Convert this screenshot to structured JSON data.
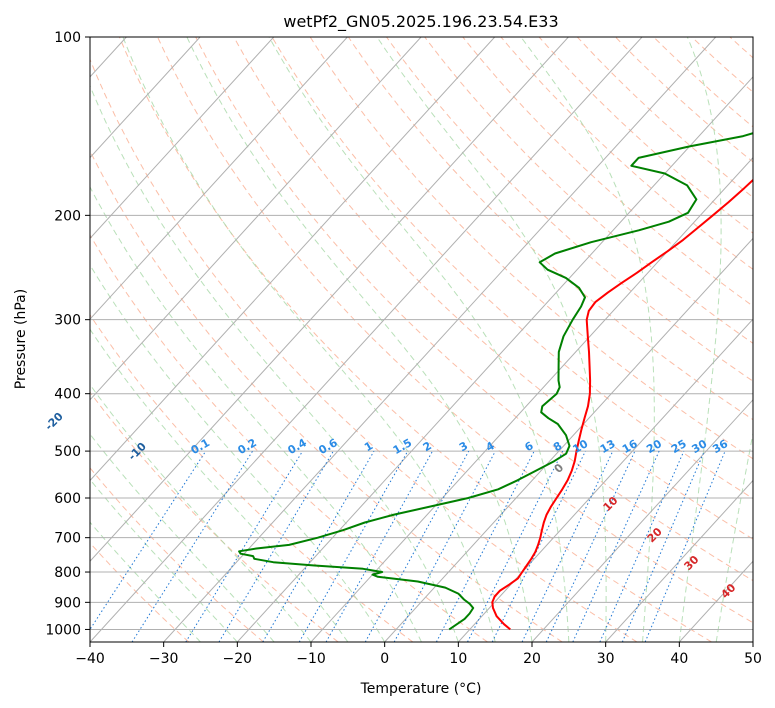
{
  "chart_data": {
    "type": "line",
    "title": "wetPf2_GN05.2025.196.23.54.E33",
    "xlabel": "Temperature (°C)",
    "ylabel": "Pressure (hPa)",
    "xlim": [
      -40,
      50
    ],
    "ylim": [
      1050,
      100
    ],
    "y_scale": "log",
    "x_ticks": [
      -40,
      -30,
      -20,
      -10,
      0,
      10,
      20,
      30,
      40,
      50
    ],
    "y_ticks": [
      100,
      200,
      300,
      400,
      500,
      600,
      700,
      800,
      900,
      1000
    ],
    "grid": true,
    "series": [
      {
        "color": "#ff0000",
        "values": [
          {
            "p": 1000,
            "t": 15.5
          },
          {
            "p": 980,
            "t": 14.0
          },
          {
            "p": 950,
            "t": 12.0
          },
          {
            "p": 920,
            "t": 10.5
          },
          {
            "p": 900,
            "t": 9.7
          },
          {
            "p": 880,
            "t": 9.3
          },
          {
            "p": 860,
            "t": 9.3
          },
          {
            "p": 840,
            "t": 9.8
          },
          {
            "p": 820,
            "t": 10.2
          },
          {
            "p": 800,
            "t": 10.0
          },
          {
            "p": 780,
            "t": 9.8
          },
          {
            "p": 760,
            "t": 9.6
          },
          {
            "p": 740,
            "t": 9.3
          },
          {
            "p": 720,
            "t": 8.8
          },
          {
            "p": 700,
            "t": 8.2
          },
          {
            "p": 680,
            "t": 7.5
          },
          {
            "p": 660,
            "t": 6.8
          },
          {
            "p": 640,
            "t": 6.2
          },
          {
            "p": 620,
            "t": 5.8
          },
          {
            "p": 600,
            "t": 5.5
          },
          {
            "p": 580,
            "t": 5.2
          },
          {
            "p": 560,
            "t": 4.8
          },
          {
            "p": 540,
            "t": 4.2
          },
          {
            "p": 520,
            "t": 3.4
          },
          {
            "p": 500,
            "t": 2.4
          },
          {
            "p": 480,
            "t": 1.4
          },
          {
            "p": 460,
            "t": 0.4
          },
          {
            "p": 440,
            "t": -0.6
          },
          {
            "p": 420,
            "t": -1.6
          },
          {
            "p": 400,
            "t": -2.9
          },
          {
            "p": 380,
            "t": -4.5
          },
          {
            "p": 360,
            "t": -6.3
          },
          {
            "p": 340,
            "t": -8.2
          },
          {
            "p": 320,
            "t": -10.3
          },
          {
            "p": 300,
            "t": -12.5
          },
          {
            "p": 290,
            "t": -13.3
          },
          {
            "p": 280,
            "t": -13.5
          },
          {
            "p": 270,
            "t": -13.0
          },
          {
            "p": 260,
            "t": -12.3
          },
          {
            "p": 250,
            "t": -11.5
          },
          {
            "p": 240,
            "t": -10.8
          },
          {
            "p": 230,
            "t": -10.0
          },
          {
            "p": 220,
            "t": -9.3
          },
          {
            "p": 210,
            "t": -8.8
          },
          {
            "p": 200,
            "t": -8.3
          },
          {
            "p": 190,
            "t": -7.8
          },
          {
            "p": 180,
            "t": -7.4
          },
          {
            "p": 170,
            "t": -7.1
          },
          {
            "p": 160,
            "t": -7.1
          },
          {
            "p": 150,
            "t": -7.5
          },
          {
            "p": 140,
            "t": -8.2
          },
          {
            "p": 130,
            "t": -9.2
          },
          {
            "p": 120,
            "t": -10.7
          },
          {
            "p": 110,
            "t": -12.3
          },
          {
            "p": 105,
            "t": -12.9
          },
          {
            "p": 100,
            "t": -13.2
          }
        ]
      },
      {
        "color": "#008000",
        "values": [
          {
            "p": 1000,
            "t": 7.2
          },
          {
            "p": 985,
            "t": 7.5
          },
          {
            "p": 960,
            "t": 8.0
          },
          {
            "p": 940,
            "t": 8.0
          },
          {
            "p": 920,
            "t": 7.8
          },
          {
            "p": 905,
            "t": 6.8
          },
          {
            "p": 890,
            "t": 5.5
          },
          {
            "p": 870,
            "t": 4.0
          },
          {
            "p": 850,
            "t": 1.5
          },
          {
            "p": 830,
            "t": -3.0
          },
          {
            "p": 815,
            "t": -9.0
          },
          {
            "p": 808,
            "t": -10.0
          },
          {
            "p": 800,
            "t": -9.0
          },
          {
            "p": 790,
            "t": -12.0
          },
          {
            "p": 780,
            "t": -19.0
          },
          {
            "p": 770,
            "t": -25.0
          },
          {
            "p": 760,
            "t": -28.0
          },
          {
            "p": 752,
            "t": -28.5
          },
          {
            "p": 745,
            "t": -30.5
          },
          {
            "p": 738,
            "t": -31.0
          },
          {
            "p": 730,
            "t": -29.0
          },
          {
            "p": 720,
            "t": -25.0
          },
          {
            "p": 700,
            "t": -22.0
          },
          {
            "p": 680,
            "t": -19.5
          },
          {
            "p": 660,
            "t": -17.5
          },
          {
            "p": 640,
            "t": -14.5
          },
          {
            "p": 620,
            "t": -10.5
          },
          {
            "p": 600,
            "t": -6.5
          },
          {
            "p": 580,
            "t": -3.5
          },
          {
            "p": 560,
            "t": -2.0
          },
          {
            "p": 540,
            "t": -0.7
          },
          {
            "p": 520,
            "t": 0.6
          },
          {
            "p": 505,
            "t": 1.3
          },
          {
            "p": 490,
            "t": 0.8
          },
          {
            "p": 470,
            "t": -1.0
          },
          {
            "p": 450,
            "t": -3.5
          },
          {
            "p": 440,
            "t": -5.5
          },
          {
            "p": 430,
            "t": -7.2
          },
          {
            "p": 420,
            "t": -7.8
          },
          {
            "p": 410,
            "t": -7.6
          },
          {
            "p": 400,
            "t": -7.4
          },
          {
            "p": 390,
            "t": -7.8
          },
          {
            "p": 380,
            "t": -8.8
          },
          {
            "p": 360,
            "t": -10.5
          },
          {
            "p": 340,
            "t": -12.3
          },
          {
            "p": 320,
            "t": -13.6
          },
          {
            "p": 300,
            "t": -14.4
          },
          {
            "p": 285,
            "t": -14.9
          },
          {
            "p": 275,
            "t": -15.5
          },
          {
            "p": 265,
            "t": -17.5
          },
          {
            "p": 255,
            "t": -20.5
          },
          {
            "p": 247,
            "t": -24.0
          },
          {
            "p": 240,
            "t": -26.0
          },
          {
            "p": 232,
            "t": -25.0
          },
          {
            "p": 222,
            "t": -21.5
          },
          {
            "p": 212,
            "t": -16.5
          },
          {
            "p": 205,
            "t": -13.5
          },
          {
            "p": 198,
            "t": -12.0
          },
          {
            "p": 188,
            "t": -12.5
          },
          {
            "p": 178,
            "t": -15.5
          },
          {
            "p": 170,
            "t": -20.0
          },
          {
            "p": 165,
            "t": -25.5
          },
          {
            "p": 160,
            "t": -25.5
          },
          {
            "p": 153,
            "t": -20.0
          },
          {
            "p": 147,
            "t": -14.0
          },
          {
            "p": 142,
            "t": -11.0
          },
          {
            "p": 135,
            "t": -10.0
          },
          {
            "p": 128,
            "t": -10.8
          },
          {
            "p": 122,
            "t": -12.5
          },
          {
            "p": 117,
            "t": -13.0
          },
          {
            "p": 112,
            "t": -11.5
          },
          {
            "p": 108,
            "t": -9.5
          },
          {
            "p": 104,
            "t": -8.5
          },
          {
            "p": 100,
            "t": -8.2
          }
        ]
      }
    ],
    "mixing_ratio_labels": [
      "0.1",
      "0.2",
      "0.4",
      "0.6",
      "1",
      "1.5",
      "2",
      "3",
      "4",
      "6",
      "8",
      "10",
      "13",
      "16",
      "20",
      "25",
      "30",
      "36"
    ],
    "dry_adiabat_labels": [
      "-100",
      "-90",
      "-80",
      "-70",
      "-60",
      "-50",
      "-40",
      "-30",
      "-20",
      "-10"
    ],
    "moist_adiabat_labels": [
      "0",
      "10",
      "20",
      "30",
      "40"
    ],
    "colors": {
      "temperature": "#ff0000",
      "dewpoint": "#008000",
      "isotherm": "#b0b0b0",
      "isobar": "#b0b0b0",
      "dry_adiabat": "#f9a88a",
      "moist_adiabat": "#a8d8a8",
      "mixing_ratio": "#1f77d4",
      "dry_label": "#1f5f9f",
      "moist_label": "#d62728",
      "mix_label": "#2b8ce6"
    }
  }
}
